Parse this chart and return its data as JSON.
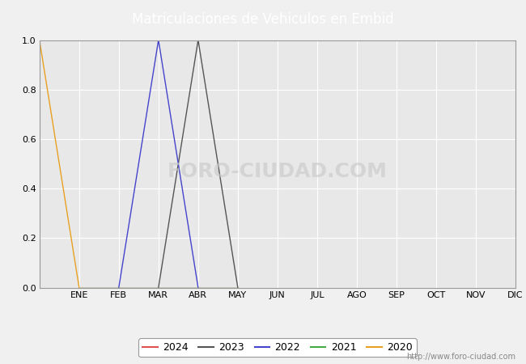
{
  "title": "Matriculaciones de Vehiculos en Embid",
  "title_bg_color": "#4d7ebf",
  "title_text_color": "#ffffff",
  "plot_bg_color": "#e8e8e8",
  "fig_bg_color": "#f0f0f0",
  "months": [
    "ENE",
    "FEB",
    "MAR",
    "ABR",
    "MAY",
    "JUN",
    "JUL",
    "AGO",
    "SEP",
    "OCT",
    "NOV",
    "DIC"
  ],
  "series": {
    "2024": {
      "color": "#e05050",
      "data": [
        [
          1,
          0
        ],
        [
          2,
          0
        ],
        [
          3,
          0
        ],
        [
          4,
          0
        ],
        [
          5,
          0
        ]
      ]
    },
    "2023": {
      "color": "#555555",
      "data": [
        [
          3,
          0
        ],
        [
          4,
          1.0
        ],
        [
          5,
          0
        ]
      ]
    },
    "2022": {
      "color": "#4444cc",
      "data": [
        [
          2,
          0
        ],
        [
          3,
          1.0
        ],
        [
          4,
          0
        ]
      ]
    },
    "2021": {
      "color": "#44aa44",
      "data": [
        [
          1,
          0
        ],
        [
          2,
          0
        ],
        [
          3,
          0
        ],
        [
          4,
          0
        ],
        [
          5,
          0
        ]
      ]
    },
    "2020": {
      "color": "#e8a020",
      "data": [
        [
          0,
          1.0
        ],
        [
          1,
          0
        ]
      ]
    }
  },
  "ylim": [
    0.0,
    1.0
  ],
  "yticks": [
    0.0,
    0.2,
    0.4,
    0.6,
    0.8,
    1.0
  ],
  "grid_color": "#ffffff",
  "url_text": "http://www.foro-ciudad.com",
  "watermark": "FORO-CIUDAD.COM",
  "legend_order": [
    "2024",
    "2023",
    "2022",
    "2021",
    "2020"
  ]
}
